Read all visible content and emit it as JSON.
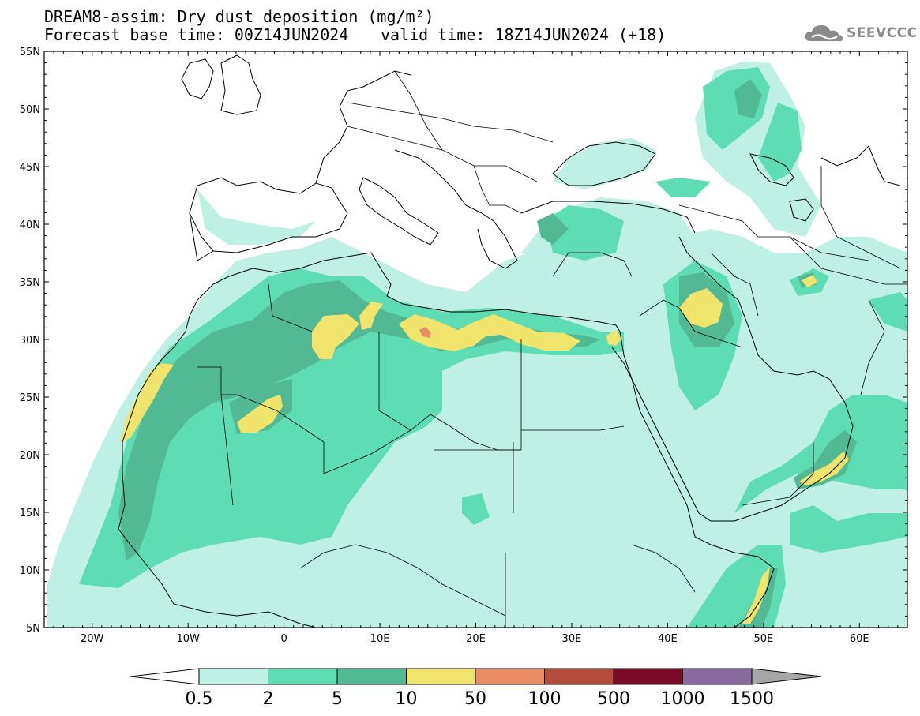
{
  "header": {
    "line1": "DREAM8-assim: Dry dust deposition (mg/m²)",
    "line2": "Forecast base time: 00Z14JUN2024",
    "valid": "valid time: 18Z14JUN2024 (+18)"
  },
  "logo": {
    "text": "SEEVCCC",
    "icon": "cloud-icon"
  },
  "map": {
    "lat_labels": [
      "55N",
      "50N",
      "45N",
      "40N",
      "35N",
      "30N",
      "25N",
      "20N",
      "15N",
      "10N",
      "5N"
    ],
    "lon_labels": [
      "20W",
      "10W",
      "0",
      "10E",
      "20E",
      "30E",
      "40E",
      "50E",
      "60E"
    ],
    "lat_range": [
      5,
      55
    ],
    "lon_range": [
      -25,
      65
    ]
  },
  "colorbar": {
    "levels": [
      "0.5",
      "2",
      "5",
      "10",
      "50",
      "100",
      "500",
      "1000",
      "1500"
    ],
    "colors": [
      "#bff0e6",
      "#5edcb4",
      "#52b995",
      "#f1e46c",
      "#e88c64",
      "#b24d3c",
      "#7a0a28",
      "#8a6a9e",
      "#a6a6a6"
    ]
  },
  "palette": {
    "c1": "#bff0e6",
    "c2": "#5edcb4",
    "c3": "#52b995",
    "c4": "#f1e46c",
    "c5": "#e88c64"
  }
}
